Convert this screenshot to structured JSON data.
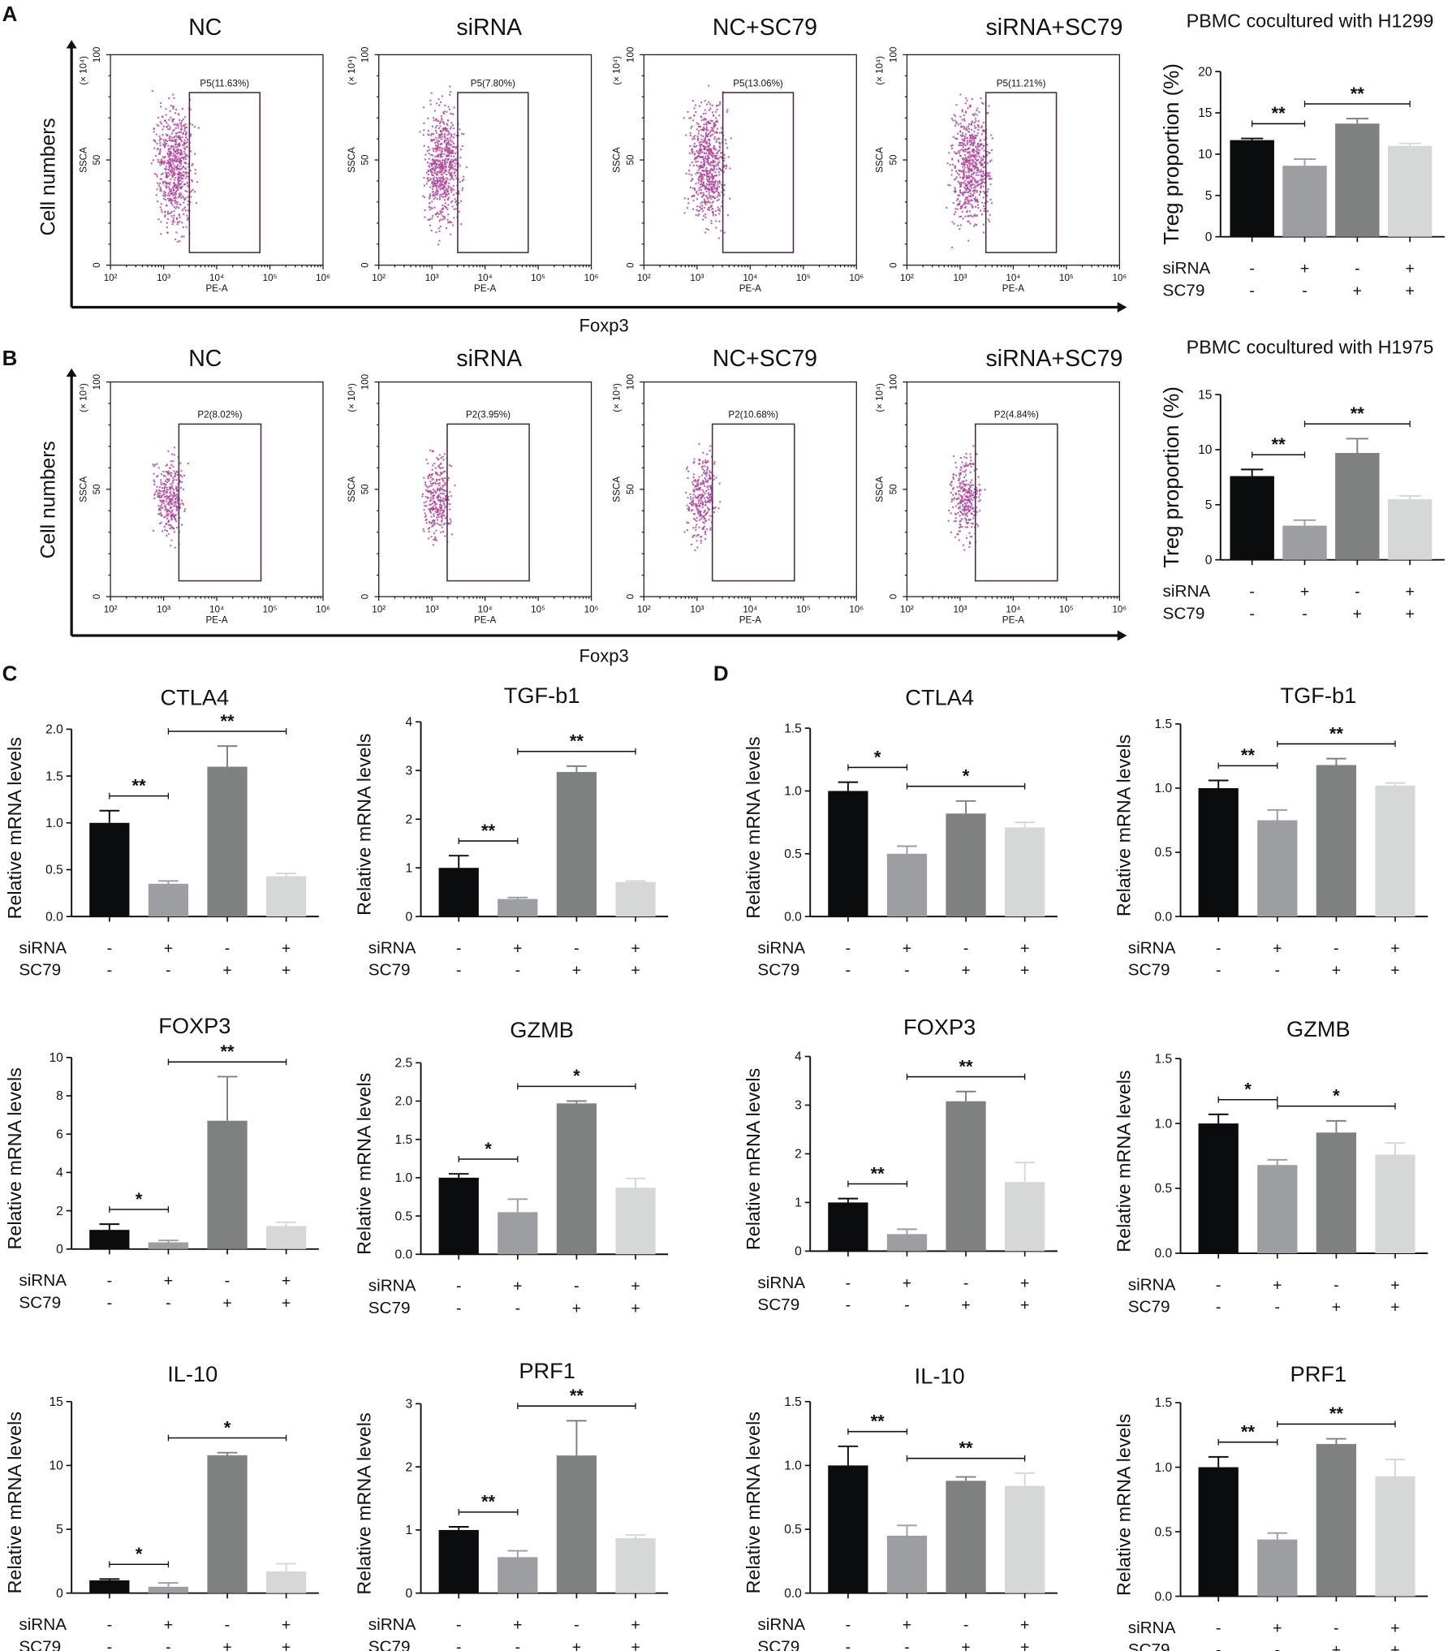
{
  "panel_labels": [
    "A",
    "B",
    "C",
    "D"
  ],
  "flow": {
    "x_ticks": [
      "10²",
      "10³",
      "10⁴",
      "10⁵",
      "10⁶"
    ],
    "y_ticks": [
      "0",
      "50",
      "100"
    ],
    "xlabel": "PE-A",
    "ylabel": "SSCA",
    "yunit": "(× 10⁴)",
    "group_ylabel": "Cell numbers",
    "group_xlabel": "Foxp3",
    "rows": [
      {
        "panel": "A",
        "plots": [
          {
            "title": "NC",
            "gate": "P5(11.63%)"
          },
          {
            "title": "siRNA",
            "gate": "P5(7.80%)"
          },
          {
            "title": "NC+SC79",
            "gate": "P5(13.06%)"
          },
          {
            "title": "siRNA+SC79",
            "gate": "P5(11.21%)"
          }
        ]
      },
      {
        "panel": "B",
        "plots": [
          {
            "title": "NC",
            "gate": "P2(8.02%)"
          },
          {
            "title": "siRNA",
            "gate": "P2(3.95%)"
          },
          {
            "title": "NC+SC79",
            "gate": "P2(10.68%)"
          },
          {
            "title": "siRNA+SC79",
            "gate": "P2(4.84%)"
          }
        ]
      }
    ]
  },
  "conditions": {
    "rows": [
      {
        "label": "siRNA",
        "values": [
          "-",
          "+",
          "-",
          "+"
        ]
      },
      {
        "label": "SC79",
        "values": [
          "-",
          "-",
          "+",
          "+"
        ]
      }
    ]
  },
  "colors": {
    "bars": [
      "#0a0c0d",
      "#9d9ea2",
      "#7f8080",
      "#d6d7d7"
    ],
    "axis": "#111111",
    "dots": "#b2479e",
    "gate": "#4a2a4a"
  },
  "chart_data": [
    {
      "id": "A-treg",
      "type": "bar",
      "title": "PBMC cocultured with H1299",
      "ylabel": "Treg proportion (%)",
      "ylim": [
        0,
        20
      ],
      "ystep": 5,
      "values": [
        11.7,
        8.6,
        13.7,
        11.0
      ],
      "errors": [
        0.2,
        0.8,
        0.6,
        0.3
      ],
      "sig": [
        {
          "from": 0,
          "to": 1,
          "label": "**"
        },
        {
          "from": 1,
          "to": 3,
          "label": "**"
        }
      ]
    },
    {
      "id": "B-treg",
      "type": "bar",
      "title": "PBMC cocultured with H1975",
      "ylabel": "Treg proportion (%)",
      "ylim": [
        0,
        15
      ],
      "ystep": 5,
      "values": [
        7.6,
        3.1,
        9.7,
        5.5
      ],
      "errors": [
        0.6,
        0.5,
        1.3,
        0.3
      ],
      "sig": [
        {
          "from": 0,
          "to": 1,
          "label": "**"
        },
        {
          "from": 1,
          "to": 3,
          "label": "**"
        }
      ]
    },
    {
      "id": "C-ctla4",
      "type": "bar",
      "title": "CTLA4",
      "ylabel": "Relative mRNA levels",
      "ylim": [
        0,
        2.0
      ],
      "ystep": 0.5,
      "values": [
        1.0,
        0.35,
        1.6,
        0.43
      ],
      "errors": [
        0.13,
        0.03,
        0.22,
        0.03
      ],
      "sig": [
        {
          "from": 0,
          "to": 1,
          "label": "**"
        },
        {
          "from": 1,
          "to": 3,
          "label": "**"
        }
      ]
    },
    {
      "id": "C-tgfb1",
      "type": "bar",
      "title": "TGF-b1",
      "ylabel": "Relative mRNA levels",
      "ylim": [
        0,
        4
      ],
      "ystep": 1,
      "values": [
        1.0,
        0.36,
        2.97,
        0.71
      ],
      "errors": [
        0.25,
        0.03,
        0.12,
        0.02
      ],
      "sig": [
        {
          "from": 0,
          "to": 1,
          "label": "**"
        },
        {
          "from": 1,
          "to": 3,
          "label": "**"
        }
      ]
    },
    {
      "id": "C-foxp3",
      "type": "bar",
      "title": "FOXP3",
      "ylabel": "Relative mRNA levels",
      "ylim": [
        0,
        10
      ],
      "ystep": 2,
      "values": [
        1.0,
        0.35,
        6.7,
        1.2
      ],
      "errors": [
        0.3,
        0.1,
        2.3,
        0.2
      ],
      "sig": [
        {
          "from": 0,
          "to": 1,
          "label": "*"
        },
        {
          "from": 1,
          "to": 3,
          "label": "**"
        }
      ]
    },
    {
      "id": "C-gzmb",
      "type": "bar",
      "title": "GZMB",
      "ylabel": "Relative mRNA levels",
      "ylim": [
        0,
        2.5
      ],
      "ystep": 0.5,
      "values": [
        1.0,
        0.55,
        1.97,
        0.87
      ],
      "errors": [
        0.05,
        0.17,
        0.03,
        0.12
      ],
      "sig": [
        {
          "from": 0,
          "to": 1,
          "label": "*"
        },
        {
          "from": 1,
          "to": 3,
          "label": "*"
        }
      ]
    },
    {
      "id": "C-il10",
      "type": "bar",
      "title": "IL-10",
      "ylabel": "Relative mRNA levels",
      "ylim": [
        0,
        15
      ],
      "ystep": 5,
      "values": [
        1.0,
        0.5,
        10.8,
        1.7
      ],
      "errors": [
        0.1,
        0.3,
        0.2,
        0.6
      ],
      "sig": [
        {
          "from": 0,
          "to": 1,
          "label": "*"
        },
        {
          "from": 1,
          "to": 3,
          "label": "*"
        }
      ]
    },
    {
      "id": "C-prf1",
      "type": "bar",
      "title": "PRF1",
      "ylabel": "Relative mRNA levels",
      "ylim": [
        0,
        3
      ],
      "ystep": 1,
      "values": [
        1.0,
        0.57,
        2.18,
        0.87
      ],
      "errors": [
        0.05,
        0.1,
        0.55,
        0.05
      ],
      "sig": [
        {
          "from": 0,
          "to": 1,
          "label": "**"
        },
        {
          "from": 1,
          "to": 3,
          "label": "**"
        }
      ]
    },
    {
      "id": "D-ctla4",
      "type": "bar",
      "title": "CTLA4",
      "ylabel": "Relative mRNA levels",
      "ylim": [
        0,
        1.5
      ],
      "ystep": 0.5,
      "values": [
        1.0,
        0.5,
        0.82,
        0.71
      ],
      "errors": [
        0.07,
        0.06,
        0.1,
        0.04
      ],
      "sig": [
        {
          "from": 0,
          "to": 1,
          "label": "*"
        },
        {
          "from": 1,
          "to": 3,
          "label": "*"
        }
      ]
    },
    {
      "id": "D-tgfb1",
      "type": "bar",
      "title": "TGF-b1",
      "ylabel": "Relative mRNA levels",
      "ylim": [
        0,
        1.5
      ],
      "ystep": 0.5,
      "values": [
        1.0,
        0.75,
        1.18,
        1.02
      ],
      "errors": [
        0.06,
        0.08,
        0.05,
        0.02
      ],
      "sig": [
        {
          "from": 0,
          "to": 1,
          "label": "**"
        },
        {
          "from": 1,
          "to": 3,
          "label": "**"
        }
      ]
    },
    {
      "id": "D-foxp3",
      "type": "bar",
      "title": "FOXP3",
      "ylabel": "Relative mRNA levels",
      "ylim": [
        0,
        4
      ],
      "ystep": 1,
      "values": [
        1.0,
        0.35,
        3.08,
        1.42
      ],
      "errors": [
        0.08,
        0.1,
        0.2,
        0.4
      ],
      "sig": [
        {
          "from": 0,
          "to": 1,
          "label": "**"
        },
        {
          "from": 1,
          "to": 3,
          "label": "**"
        }
      ]
    },
    {
      "id": "D-gzmb",
      "type": "bar",
      "title": "GZMB",
      "ylabel": "Relative mRNA levels",
      "ylim": [
        0,
        1.5
      ],
      "ystep": 0.5,
      "values": [
        1.0,
        0.68,
        0.93,
        0.76
      ],
      "errors": [
        0.07,
        0.04,
        0.09,
        0.09
      ],
      "sig": [
        {
          "from": 0,
          "to": 1,
          "label": "*"
        },
        {
          "from": 1,
          "to": 3,
          "label": "*"
        }
      ]
    },
    {
      "id": "D-il10",
      "type": "bar",
      "title": "IL-10",
      "ylabel": "Relative mRNA levels",
      "ylim": [
        0,
        1.5
      ],
      "ystep": 0.5,
      "values": [
        1.0,
        0.45,
        0.88,
        0.84
      ],
      "errors": [
        0.15,
        0.08,
        0.03,
        0.1
      ],
      "sig": [
        {
          "from": 0,
          "to": 1,
          "label": "**"
        },
        {
          "from": 1,
          "to": 3,
          "label": "**"
        }
      ]
    },
    {
      "id": "D-prf1",
      "type": "bar",
      "title": "PRF1",
      "ylabel": "Relative mRNA levels",
      "ylim": [
        0,
        1.5
      ],
      "ystep": 0.5,
      "values": [
        1.0,
        0.44,
        1.18,
        0.93
      ],
      "errors": [
        0.08,
        0.05,
        0.04,
        0.13
      ],
      "sig": [
        {
          "from": 0,
          "to": 1,
          "label": "**"
        },
        {
          "from": 1,
          "to": 3,
          "label": "**"
        }
      ]
    }
  ]
}
